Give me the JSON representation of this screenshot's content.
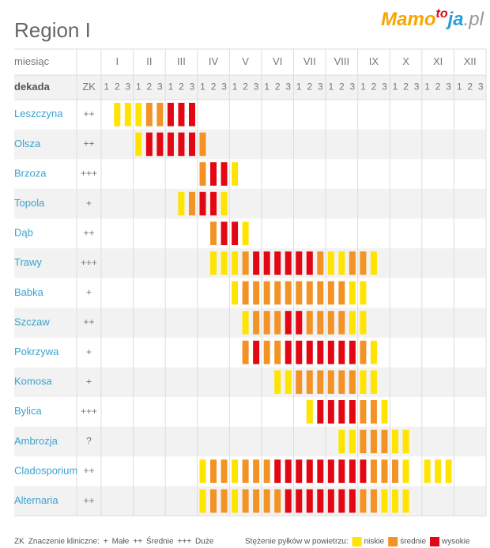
{
  "title": "Region I",
  "logo": {
    "main": "Mamo",
    "to": "to",
    "ja": "ja",
    "domain": ".pl"
  },
  "header": {
    "month_label": "miesiąc",
    "decade_label": "dekada",
    "zk_label": "ZK",
    "months": [
      "I",
      "II",
      "III",
      "IV",
      "V",
      "VI",
      "VII",
      "VIII",
      "IX",
      "X",
      "XI",
      "XII"
    ],
    "decades": [
      "1",
      "2",
      "3"
    ]
  },
  "levels": [
    {
      "name": "niskie",
      "color": "#ffe400"
    },
    {
      "name": "średnie",
      "color": "#f39325"
    },
    {
      "name": "wysokie",
      "color": "#e30613"
    }
  ],
  "rows": [
    {
      "name": "Leszczyna",
      "zk": "++",
      "levels": [
        0,
        1,
        1,
        1,
        2,
        2,
        3,
        3,
        3,
        0,
        0,
        0,
        0,
        0,
        0,
        0,
        0,
        0,
        0,
        0,
        0,
        0,
        0,
        0,
        0,
        0,
        0,
        0,
        0,
        0,
        0,
        0,
        0,
        0,
        0,
        0
      ]
    },
    {
      "name": "Olsza",
      "zk": "++",
      "levels": [
        0,
        0,
        0,
        1,
        3,
        3,
        3,
        3,
        3,
        2,
        0,
        0,
        0,
        0,
        0,
        0,
        0,
        0,
        0,
        0,
        0,
        0,
        0,
        0,
        0,
        0,
        0,
        0,
        0,
        0,
        0,
        0,
        0,
        0,
        0,
        0
      ]
    },
    {
      "name": "Brzoza",
      "zk": "+++",
      "levels": [
        0,
        0,
        0,
        0,
        0,
        0,
        0,
        0,
        0,
        2,
        3,
        3,
        1,
        0,
        0,
        0,
        0,
        0,
        0,
        0,
        0,
        0,
        0,
        0,
        0,
        0,
        0,
        0,
        0,
        0,
        0,
        0,
        0,
        0,
        0,
        0
      ]
    },
    {
      "name": "Topola",
      "zk": "+",
      "levels": [
        0,
        0,
        0,
        0,
        0,
        0,
        0,
        1,
        2,
        3,
        3,
        1,
        0,
        0,
        0,
        0,
        0,
        0,
        0,
        0,
        0,
        0,
        0,
        0,
        0,
        0,
        0,
        0,
        0,
        0,
        0,
        0,
        0,
        0,
        0,
        0
      ]
    },
    {
      "name": "Dąb",
      "zk": "++",
      "levels": [
        0,
        0,
        0,
        0,
        0,
        0,
        0,
        0,
        0,
        0,
        2,
        3,
        3,
        1,
        0,
        0,
        0,
        0,
        0,
        0,
        0,
        0,
        0,
        0,
        0,
        0,
        0,
        0,
        0,
        0,
        0,
        0,
        0,
        0,
        0,
        0
      ]
    },
    {
      "name": "Trawy",
      "zk": "+++",
      "levels": [
        0,
        0,
        0,
        0,
        0,
        0,
        0,
        0,
        0,
        0,
        1,
        1,
        1,
        2,
        3,
        3,
        3,
        3,
        3,
        3,
        2,
        1,
        1,
        2,
        2,
        1,
        0,
        0,
        0,
        0,
        0,
        0,
        0,
        0,
        0,
        0
      ]
    },
    {
      "name": "Babka",
      "zk": "+",
      "levels": [
        0,
        0,
        0,
        0,
        0,
        0,
        0,
        0,
        0,
        0,
        0,
        0,
        1,
        2,
        2,
        2,
        2,
        2,
        2,
        2,
        2,
        2,
        2,
        1,
        1,
        0,
        0,
        0,
        0,
        0,
        0,
        0,
        0,
        0,
        0,
        0
      ]
    },
    {
      "name": "Szczaw",
      "zk": "++",
      "levels": [
        0,
        0,
        0,
        0,
        0,
        0,
        0,
        0,
        0,
        0,
        0,
        0,
        0,
        1,
        2,
        2,
        2,
        3,
        3,
        2,
        2,
        2,
        2,
        1,
        1,
        0,
        0,
        0,
        0,
        0,
        0,
        0,
        0,
        0,
        0,
        0
      ]
    },
    {
      "name": "Pokrzywa",
      "zk": "+",
      "levels": [
        0,
        0,
        0,
        0,
        0,
        0,
        0,
        0,
        0,
        0,
        0,
        0,
        0,
        2,
        3,
        2,
        2,
        3,
        3,
        3,
        3,
        3,
        3,
        3,
        2,
        1,
        0,
        0,
        0,
        0,
        0,
        0,
        0,
        0,
        0,
        0
      ]
    },
    {
      "name": "Komosa",
      "zk": "+",
      "levels": [
        0,
        0,
        0,
        0,
        0,
        0,
        0,
        0,
        0,
        0,
        0,
        0,
        0,
        0,
        0,
        0,
        1,
        1,
        2,
        2,
        2,
        2,
        2,
        2,
        1,
        1,
        0,
        0,
        0,
        0,
        0,
        0,
        0,
        0,
        0,
        0
      ]
    },
    {
      "name": "Bylica",
      "zk": "+++",
      "levels": [
        0,
        0,
        0,
        0,
        0,
        0,
        0,
        0,
        0,
        0,
        0,
        0,
        0,
        0,
        0,
        0,
        0,
        0,
        0,
        1,
        3,
        3,
        3,
        3,
        2,
        2,
        1,
        0,
        0,
        0,
        0,
        0,
        0,
        0,
        0,
        0
      ]
    },
    {
      "name": "Ambrozja",
      "zk": "?",
      "levels": [
        0,
        0,
        0,
        0,
        0,
        0,
        0,
        0,
        0,
        0,
        0,
        0,
        0,
        0,
        0,
        0,
        0,
        0,
        0,
        0,
        0,
        0,
        1,
        1,
        2,
        2,
        2,
        1,
        1,
        0,
        0,
        0,
        0,
        0,
        0,
        0
      ]
    },
    {
      "name": "Cladosporium",
      "zk": "++",
      "levels": [
        0,
        0,
        0,
        0,
        0,
        0,
        0,
        0,
        0,
        1,
        2,
        2,
        1,
        2,
        2,
        2,
        3,
        3,
        3,
        3,
        3,
        3,
        3,
        3,
        3,
        2,
        2,
        2,
        1,
        0,
        1,
        1,
        1,
        0,
        0,
        0
      ]
    },
    {
      "name": "Alternaria",
      "zk": "++",
      "levels": [
        0,
        0,
        0,
        0,
        0,
        0,
        0,
        0,
        0,
        1,
        2,
        2,
        1,
        2,
        2,
        2,
        2,
        3,
        3,
        3,
        3,
        3,
        3,
        3,
        2,
        2,
        1,
        1,
        1,
        0,
        0,
        0,
        0,
        0,
        0,
        0
      ]
    }
  ],
  "legend": {
    "zk": "ZK",
    "zk_title": "Znaczenie kliniczne:",
    "zk_items": [
      {
        "symbol": "+",
        "label": "Małe"
      },
      {
        "symbol": "++",
        "label": "Średnie"
      },
      {
        "symbol": "+++",
        "label": "Duże"
      }
    ],
    "concentration_title": "Stężenie pyłków w powietrzu:"
  }
}
